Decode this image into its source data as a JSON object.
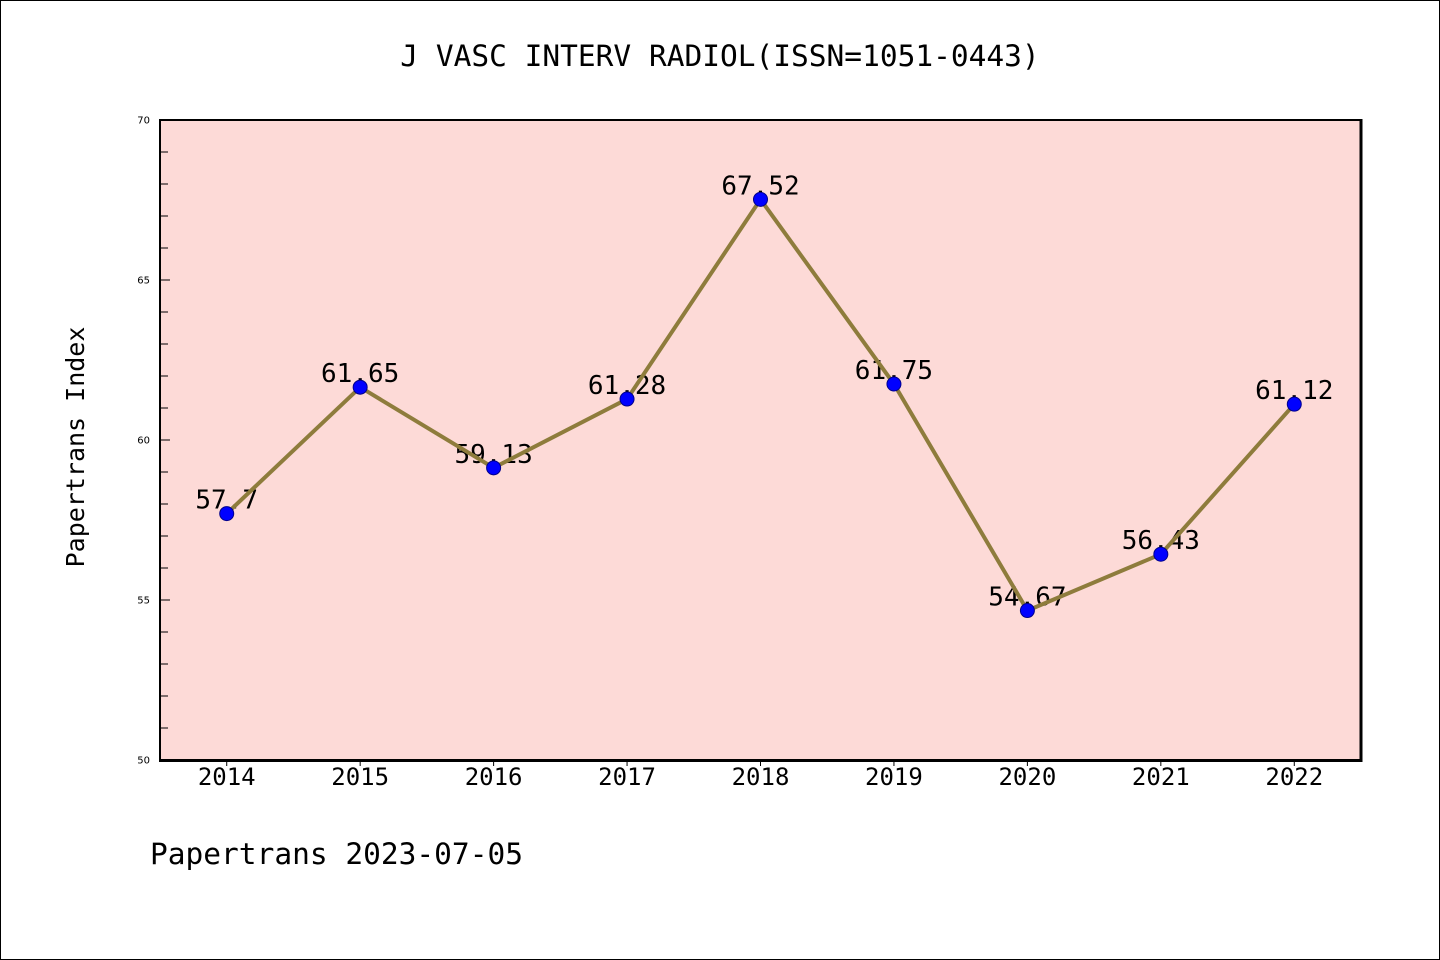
{
  "chart_data": {
    "type": "line",
    "title": "J VASC INTERV RADIOL(ISSN=1051-0443)",
    "xlabel": "",
    "ylabel": "Papertrans Index",
    "categories": [
      "2014",
      "2015",
      "2016",
      "2017",
      "2018",
      "2019",
      "2020",
      "2021",
      "2022"
    ],
    "series": [
      {
        "values": [
          57.7,
          61.65,
          59.13,
          61.28,
          67.52,
          61.75,
          54.67,
          56.43,
          61.12
        ]
      }
    ],
    "data_labels": [
      "57.7",
      "61.65",
      "59.13",
      "61.28",
      "67.52",
      "61.75",
      "54.67",
      "56.43",
      "61.12"
    ],
    "ylim": [
      50,
      70
    ],
    "yticks": [
      50,
      55,
      60,
      65,
      70
    ],
    "ytick_labels": [
      "50",
      "55",
      "60",
      "65",
      "70"
    ],
    "y_minor_tick_step": 1,
    "grid": false,
    "legend": "none",
    "colors": {
      "plot_background": "#fddad7",
      "line": "#8e7c3c",
      "marker_fill": "#0000ff",
      "marker_edge": "#00008b",
      "axis": "#000000"
    }
  },
  "footer": "Papertrans 2023-07-05"
}
